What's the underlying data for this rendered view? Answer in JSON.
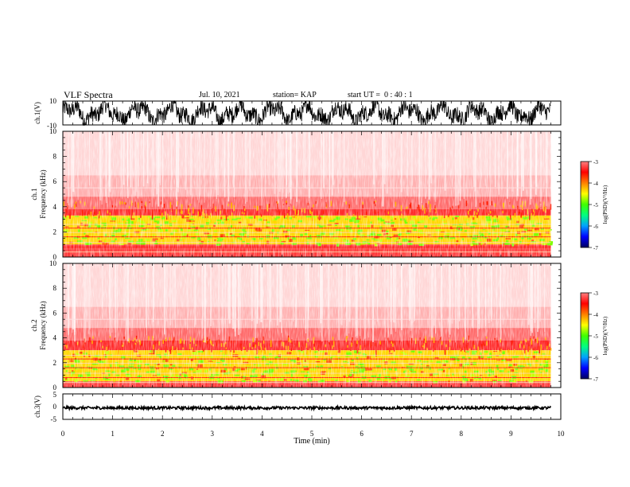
{
  "header": {
    "title": "VLF Spectra",
    "date": "Jul. 10, 2021",
    "station": "station= KAP",
    "start": "start UT =  0 : 40 : 1"
  },
  "colors": {
    "colormap": [
      "#000060",
      "#0000ff",
      "#00a0ff",
      "#00ff80",
      "#40ff00",
      "#ffff00",
      "#ff8000",
      "#ff0000",
      "#ff8080",
      "#ffffff"
    ],
    "waveform": "#000000",
    "background": "#ffffff"
  },
  "chart_data": [
    {
      "type": "line",
      "id": "ch1-waveform",
      "ylabel": "ch.1(V)",
      "ylim": [
        -10,
        10
      ],
      "yticks": [
        "10",
        "-10"
      ],
      "xlim": [
        0,
        10
      ],
      "description_values": {
        "y_min": -10,
        "y_max": 10
      }
    },
    {
      "type": "heatmap",
      "id": "ch1-spectrogram",
      "ylabel_channel": "ch.1",
      "ylabel": "Frequency (kHz)",
      "ylim": [
        0,
        10
      ],
      "yticks": [
        "0",
        "2",
        "4",
        "6",
        "8",
        "10"
      ],
      "xlim": [
        0,
        10
      ],
      "data_end_min": 9.8,
      "strong_band_khz": [
        1.0,
        3.3
      ],
      "colorbar": {
        "label": "log(PSD)(V²/Hz)",
        "range": [
          -7,
          -3
        ],
        "ticks": [
          "-3",
          "-4",
          "-5",
          "-6",
          "-7"
        ]
      }
    },
    {
      "type": "heatmap",
      "id": "ch2-spectrogram",
      "ylabel_channel": "ch.2",
      "ylabel": "Frequency (kHz)",
      "ylim": [
        0,
        10
      ],
      "yticks": [
        "0",
        "2",
        "4",
        "6",
        "8",
        "10"
      ],
      "xlim": [
        0,
        10
      ],
      "data_end_min": 9.8,
      "strong_band_khz": [
        0.5,
        3.0
      ],
      "colorbar": {
        "label": "log(PSD)(V²/Hz)",
        "range": [
          -7,
          -3
        ],
        "ticks": [
          "-3",
          "-4",
          "-5",
          "-6",
          "-7"
        ]
      }
    },
    {
      "type": "line",
      "id": "ch3-waveform",
      "ylabel": "ch.3(V)",
      "ylim": [
        -5,
        5
      ],
      "yticks": [
        "5",
        "0",
        "-5"
      ],
      "xlim": [
        0,
        10
      ],
      "xlabel": "Time (min)",
      "xticks": [
        "0",
        "1",
        "2",
        "3",
        "4",
        "5",
        "6",
        "7",
        "8",
        "9",
        "10"
      ],
      "level_v": -0.5
    }
  ]
}
